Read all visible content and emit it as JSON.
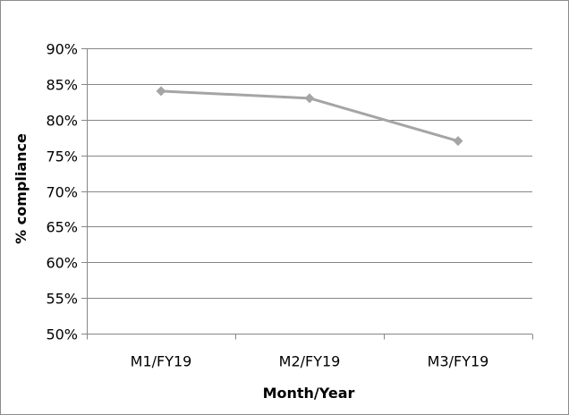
{
  "chart_data": {
    "type": "line",
    "title": "",
    "xlabel": "Month/Year",
    "ylabel": "% compliance",
    "categories": [
      "M1/FY19",
      "M2/FY19",
      "M3/FY19"
    ],
    "series": [
      {
        "values": [
          84,
          83,
          77
        ],
        "color": "#a5a5a5",
        "marker": "diamond"
      }
    ],
    "ylim": [
      50,
      90
    ],
    "y_ticks": [
      50,
      55,
      60,
      65,
      70,
      75,
      80,
      85,
      90
    ],
    "y_tick_labels": [
      "50%",
      "55%",
      "60%",
      "65%",
      "70%",
      "75%",
      "80%",
      "85%",
      "90%"
    ],
    "grid": true,
    "legend": "none",
    "colors": {
      "gridline": "#868686",
      "axis": "#868686",
      "border": "#8c8c8c"
    }
  }
}
